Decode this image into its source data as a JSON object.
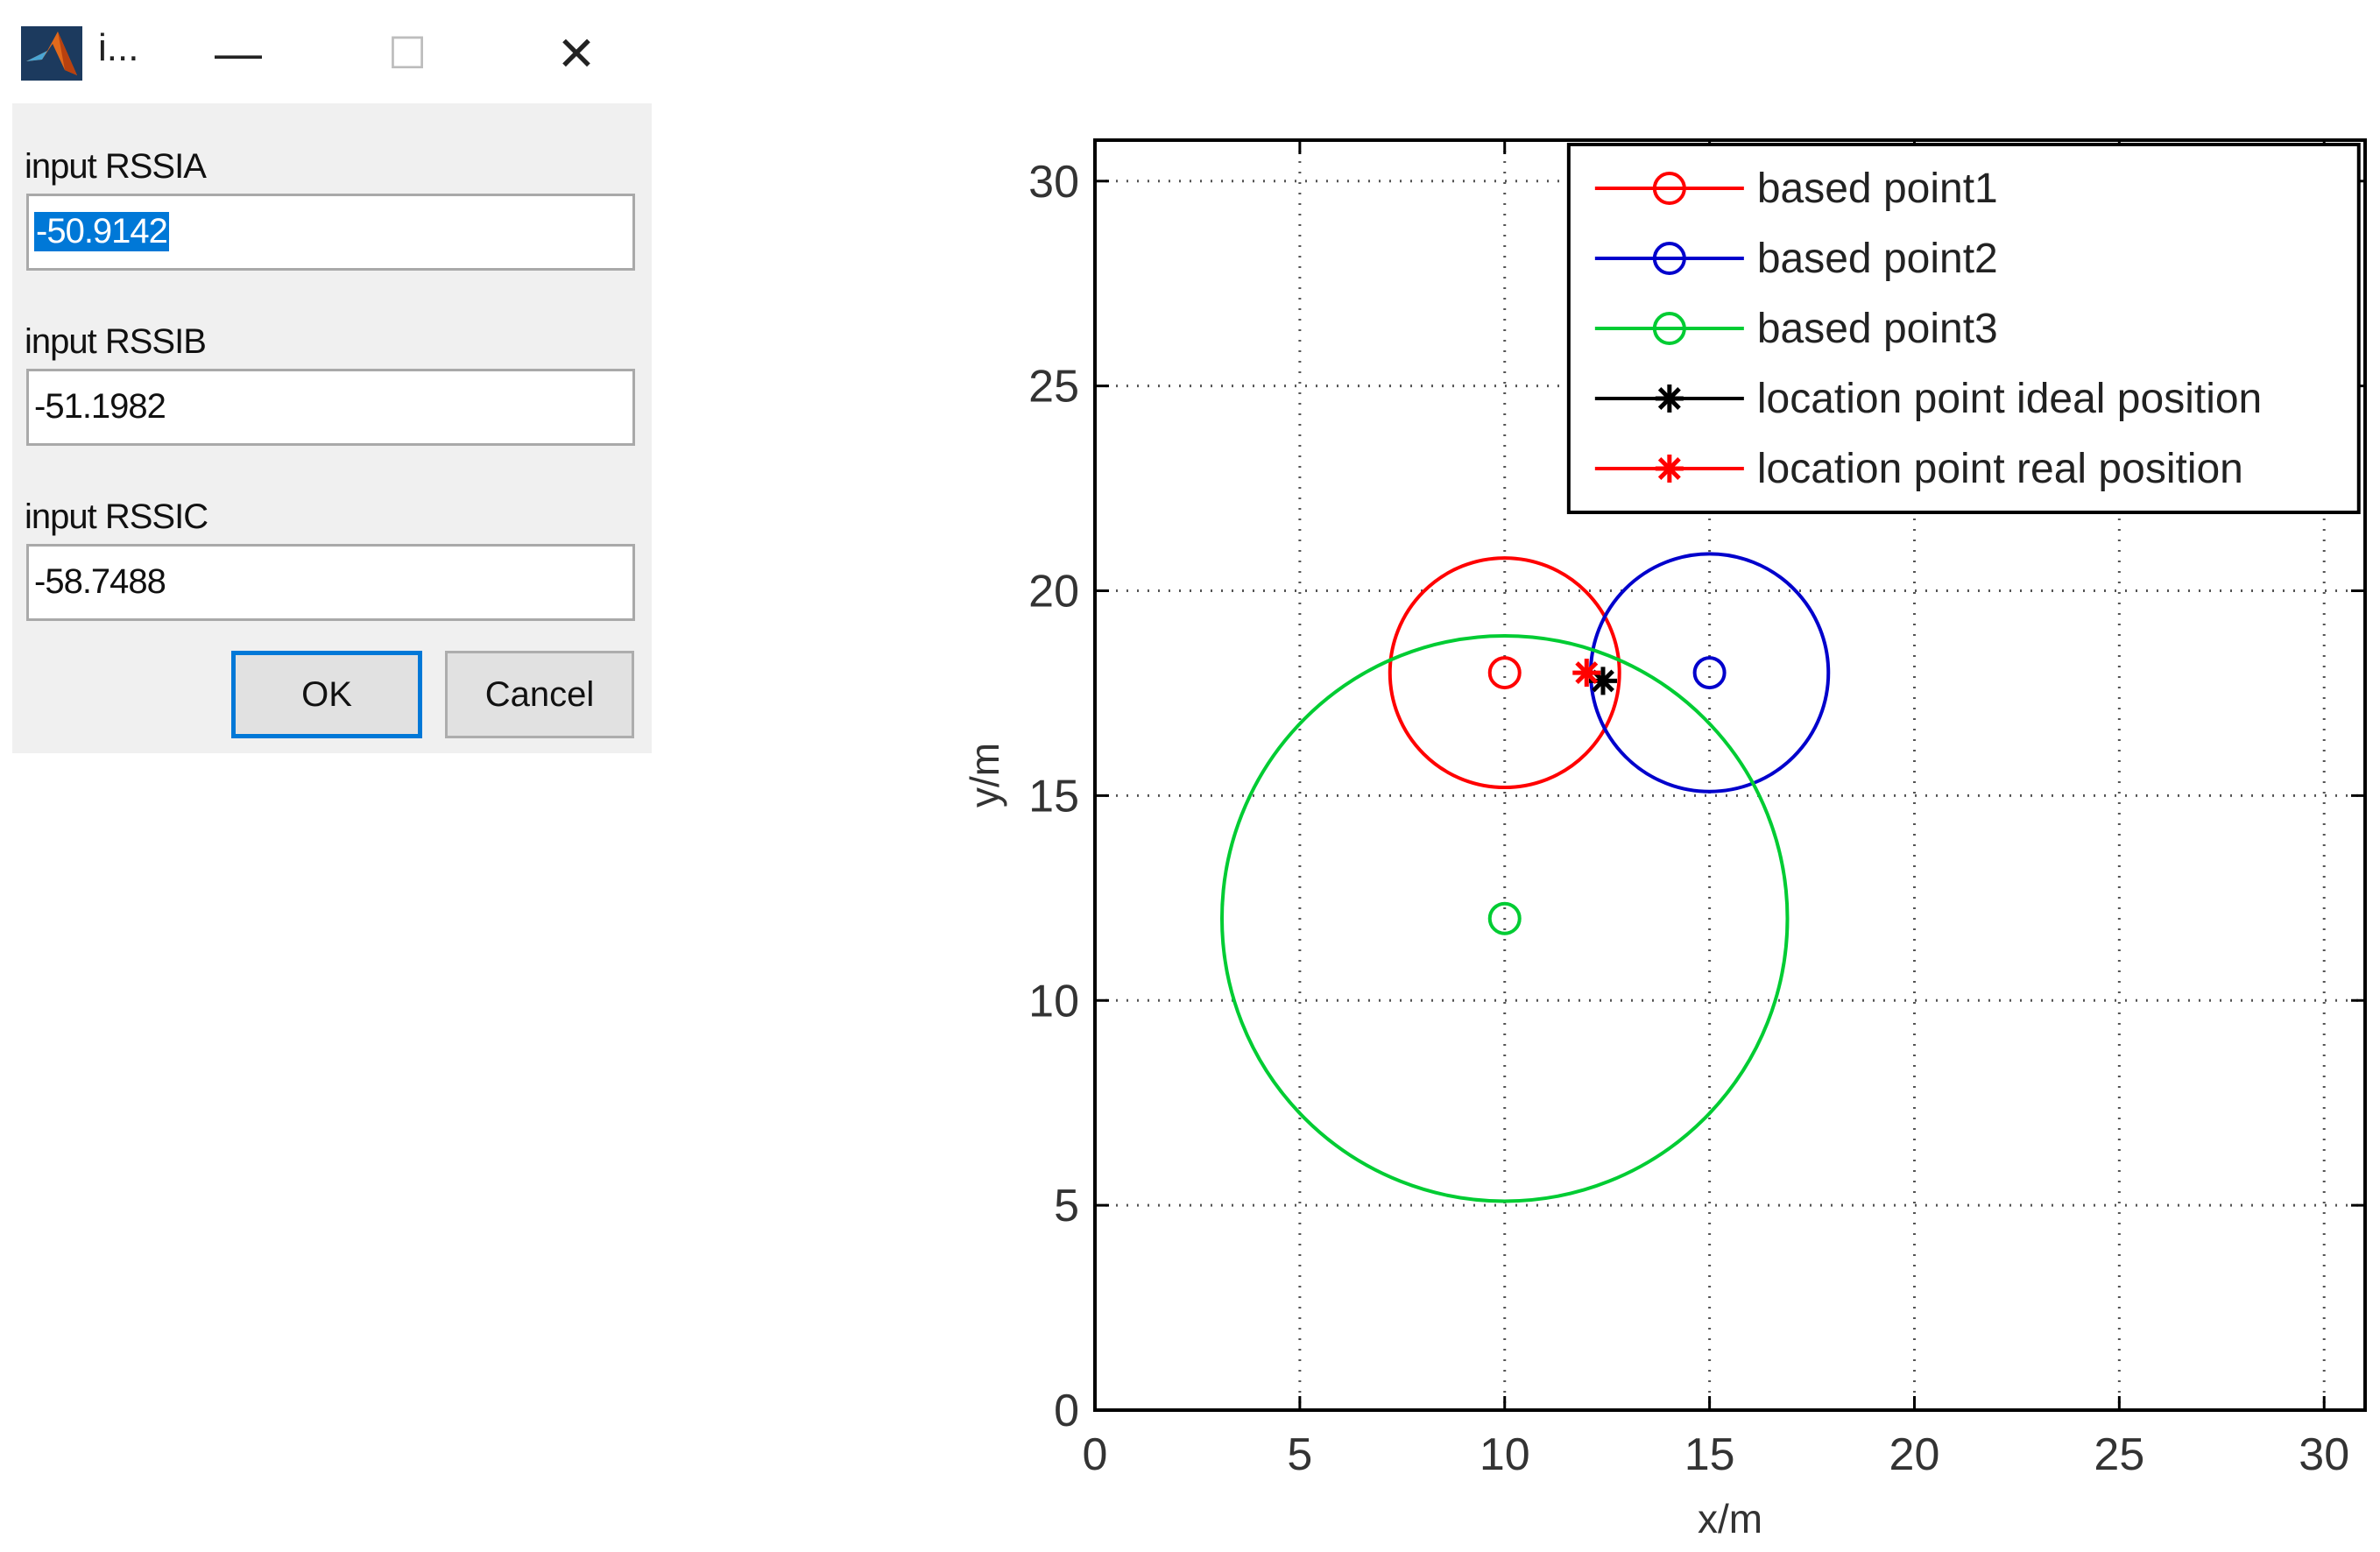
{
  "window": {
    "title": "i...",
    "minimize_glyph": "—",
    "maximize_glyph": "☐",
    "close_glyph": "✕",
    "icon": "matlab-icon"
  },
  "dialog": {
    "fields": [
      {
        "label": "input RSSIA",
        "value": "-50.9142",
        "selected": true
      },
      {
        "label": "input RSSIB",
        "value": "-51.1982",
        "selected": false
      },
      {
        "label": "input RSSIC",
        "value": "-58.7488",
        "selected": false
      }
    ],
    "ok_label": "OK",
    "cancel_label": "Cancel"
  },
  "chart_data": {
    "type": "scatter",
    "xlabel": "x/m",
    "ylabel": "y/m",
    "xlim": [
      0,
      31
    ],
    "ylim": [
      0,
      31
    ],
    "xticks": [
      0,
      5,
      10,
      15,
      20,
      25,
      30
    ],
    "yticks": [
      0,
      5,
      10,
      15,
      20,
      25,
      30
    ],
    "grid": true,
    "legend_position": "top-right",
    "series": [
      {
        "name": "based point1",
        "color": "#ff0000",
        "marker": "o",
        "points": [
          [
            10,
            18
          ]
        ],
        "circle_radius": 2.8
      },
      {
        "name": "based point2",
        "color": "#0000cc",
        "marker": "o",
        "points": [
          [
            15,
            18
          ]
        ],
        "circle_radius": 2.9
      },
      {
        "name": "based point3",
        "color": "#00cc33",
        "marker": "o",
        "points": [
          [
            10,
            12
          ]
        ],
        "circle_radius": 6.9
      },
      {
        "name": "location point ideal position",
        "color": "#000000",
        "marker": "*",
        "points": [
          [
            12.4,
            17.8
          ]
        ]
      },
      {
        "name": "location point real position",
        "color": "#ff0000",
        "marker": "*",
        "points": [
          [
            12.0,
            18.0
          ]
        ]
      }
    ]
  }
}
